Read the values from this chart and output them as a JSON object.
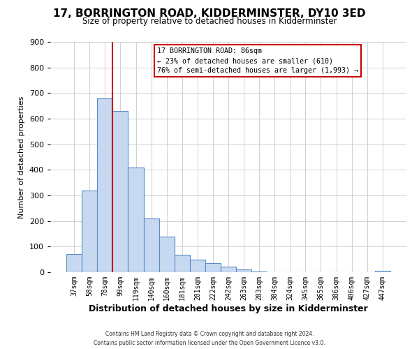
{
  "title": "17, BORRINGTON ROAD, KIDDERMINSTER, DY10 3ED",
  "subtitle": "Size of property relative to detached houses in Kidderminster",
  "xlabel": "Distribution of detached houses by size in Kidderminster",
  "ylabel": "Number of detached properties",
  "bar_labels": [
    "37sqm",
    "58sqm",
    "78sqm",
    "99sqm",
    "119sqm",
    "140sqm",
    "160sqm",
    "181sqm",
    "201sqm",
    "222sqm",
    "242sqm",
    "263sqm",
    "283sqm",
    "304sqm",
    "324sqm",
    "345sqm",
    "365sqm",
    "386sqm",
    "406sqm",
    "427sqm",
    "447sqm"
  ],
  "bar_values": [
    72,
    320,
    680,
    630,
    410,
    210,
    138,
    68,
    48,
    35,
    22,
    10,
    3,
    1,
    1,
    1,
    0,
    0,
    0,
    0,
    5
  ],
  "bar_color": "#c6d9f0",
  "bar_edge_color": "#5b8cc8",
  "vline_color": "#cc0000",
  "vline_x_index": 2,
  "annotation_title": "17 BORRINGTON ROAD: 86sqm",
  "annotation_line1": "← 23% of detached houses are smaller (610)",
  "annotation_line2": "76% of semi-detached houses are larger (1,993) →",
  "annotation_box_color": "#cc0000",
  "ylim": [
    0,
    900
  ],
  "yticks": [
    0,
    100,
    200,
    300,
    400,
    500,
    600,
    700,
    800,
    900
  ],
  "footer_line1": "Contains HM Land Registry data © Crown copyright and database right 2024.",
  "footer_line2": "Contains public sector information licensed under the Open Government Licence v3.0.",
  "background_color": "#ffffff",
  "grid_color": "#d0d0d0"
}
